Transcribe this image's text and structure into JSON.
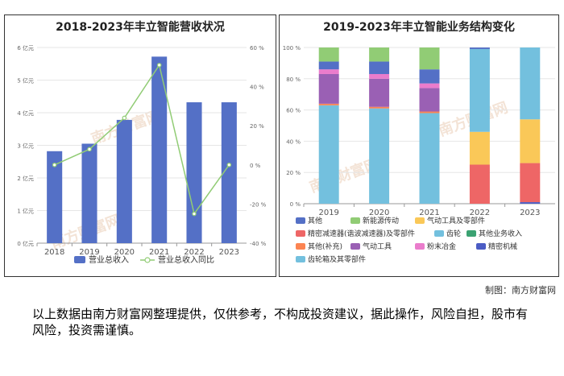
{
  "chart_data": [
    {
      "type": "bar+line",
      "title": "2018-2023年丰立智能营收状况",
      "categories": [
        "2018",
        "2019",
        "2020",
        "2021",
        "2022",
        "2023"
      ],
      "series": [
        {
          "name": "营业总收入",
          "axis": "left",
          "kind": "bar",
          "values": [
            2.82,
            3.05,
            3.78,
            5.72,
            4.32,
            4.32
          ]
        },
        {
          "name": "营业总收入同比",
          "axis": "right",
          "kind": "line",
          "values": [
            0,
            8,
            24,
            51,
            -25,
            0
          ]
        }
      ],
      "left_axis": {
        "ticks": [
          "0 亿元",
          "1 亿元",
          "2 亿元",
          "3 亿元",
          "4 亿元",
          "5 亿元",
          "6 亿元"
        ],
        "ylim": [
          0,
          6
        ]
      },
      "right_axis": {
        "ticks": [
          "-40 %",
          "-20 %",
          "0 %",
          "20 %",
          "40 %",
          "60 %"
        ],
        "ylim": [
          -40,
          60
        ]
      },
      "legend": [
        "营业总收入",
        "营业总收入同比"
      ]
    },
    {
      "type": "stacked-bar",
      "title": "2019-2023年丰立智能业务结构变化",
      "categories": [
        "2019",
        "2020",
        "2021",
        "2022",
        "2023"
      ],
      "y_ticks": [
        "0 %",
        "20 %",
        "40 %",
        "60 %",
        "80 %",
        "100 %"
      ],
      "ylim": [
        0,
        100
      ],
      "series": [
        {
          "name": "精密机械",
          "values": [
            0,
            0,
            0,
            0,
            1
          ]
        },
        {
          "name": "齿轮",
          "values": [
            63,
            61,
            58,
            0,
            0
          ]
        },
        {
          "name": "其他(补充)",
          "values": [
            1,
            1,
            1,
            0,
            0
          ]
        },
        {
          "name": "气动工具",
          "values": [
            19,
            18,
            15,
            0,
            0
          ]
        },
        {
          "name": "粉末冶金",
          "values": [
            3,
            3,
            3,
            0,
            0
          ]
        },
        {
          "name": "精密减速器(谐波减速器)及零部件",
          "values": [
            0,
            0,
            0,
            25,
            25
          ]
        },
        {
          "name": "气动工具及零部件",
          "values": [
            0,
            0,
            0,
            21,
            28
          ]
        },
        {
          "name": "齿轮箱及其零部件",
          "values": [
            0,
            0,
            0,
            53,
            46
          ]
        },
        {
          "name": "其他",
          "values": [
            5,
            8,
            9,
            1,
            0
          ]
        },
        {
          "name": "新能源传动",
          "values": [
            9,
            9,
            14,
            0,
            0
          ]
        },
        {
          "name": "其他业务收入",
          "values": [
            0,
            0,
            0,
            0,
            0
          ]
        }
      ],
      "legend": [
        "其他",
        "新能源传动",
        "气动工具及零部件",
        "精密减速器(谐波减速器)及零部件",
        "齿轮",
        "其他业务收入",
        "其他(补充)",
        "气动工具",
        "粉末冶金",
        "精密机械",
        "齿轮箱及其零部件"
      ]
    }
  ],
  "colors": {
    "bar_blue": "#5470c6",
    "line_green": "#91cc75",
    "yellow": "#fac858",
    "red": "#ee6666",
    "lightblue": "#73c0de",
    "green": "#3ba272",
    "orange": "#fc8452",
    "purple": "#9a60b4",
    "pink": "#ea7ccc",
    "darkblue": "#4b5cc4",
    "lightgreen": "#8fd175"
  },
  "watermark": "南方财富网",
  "credit": "制图：南方财富网",
  "disclaimer": "以上数据由南方财富网整理提供，仅供参考，不构成投资建议，据此操作，风险自担，股市有风险，投资需谨慎。"
}
